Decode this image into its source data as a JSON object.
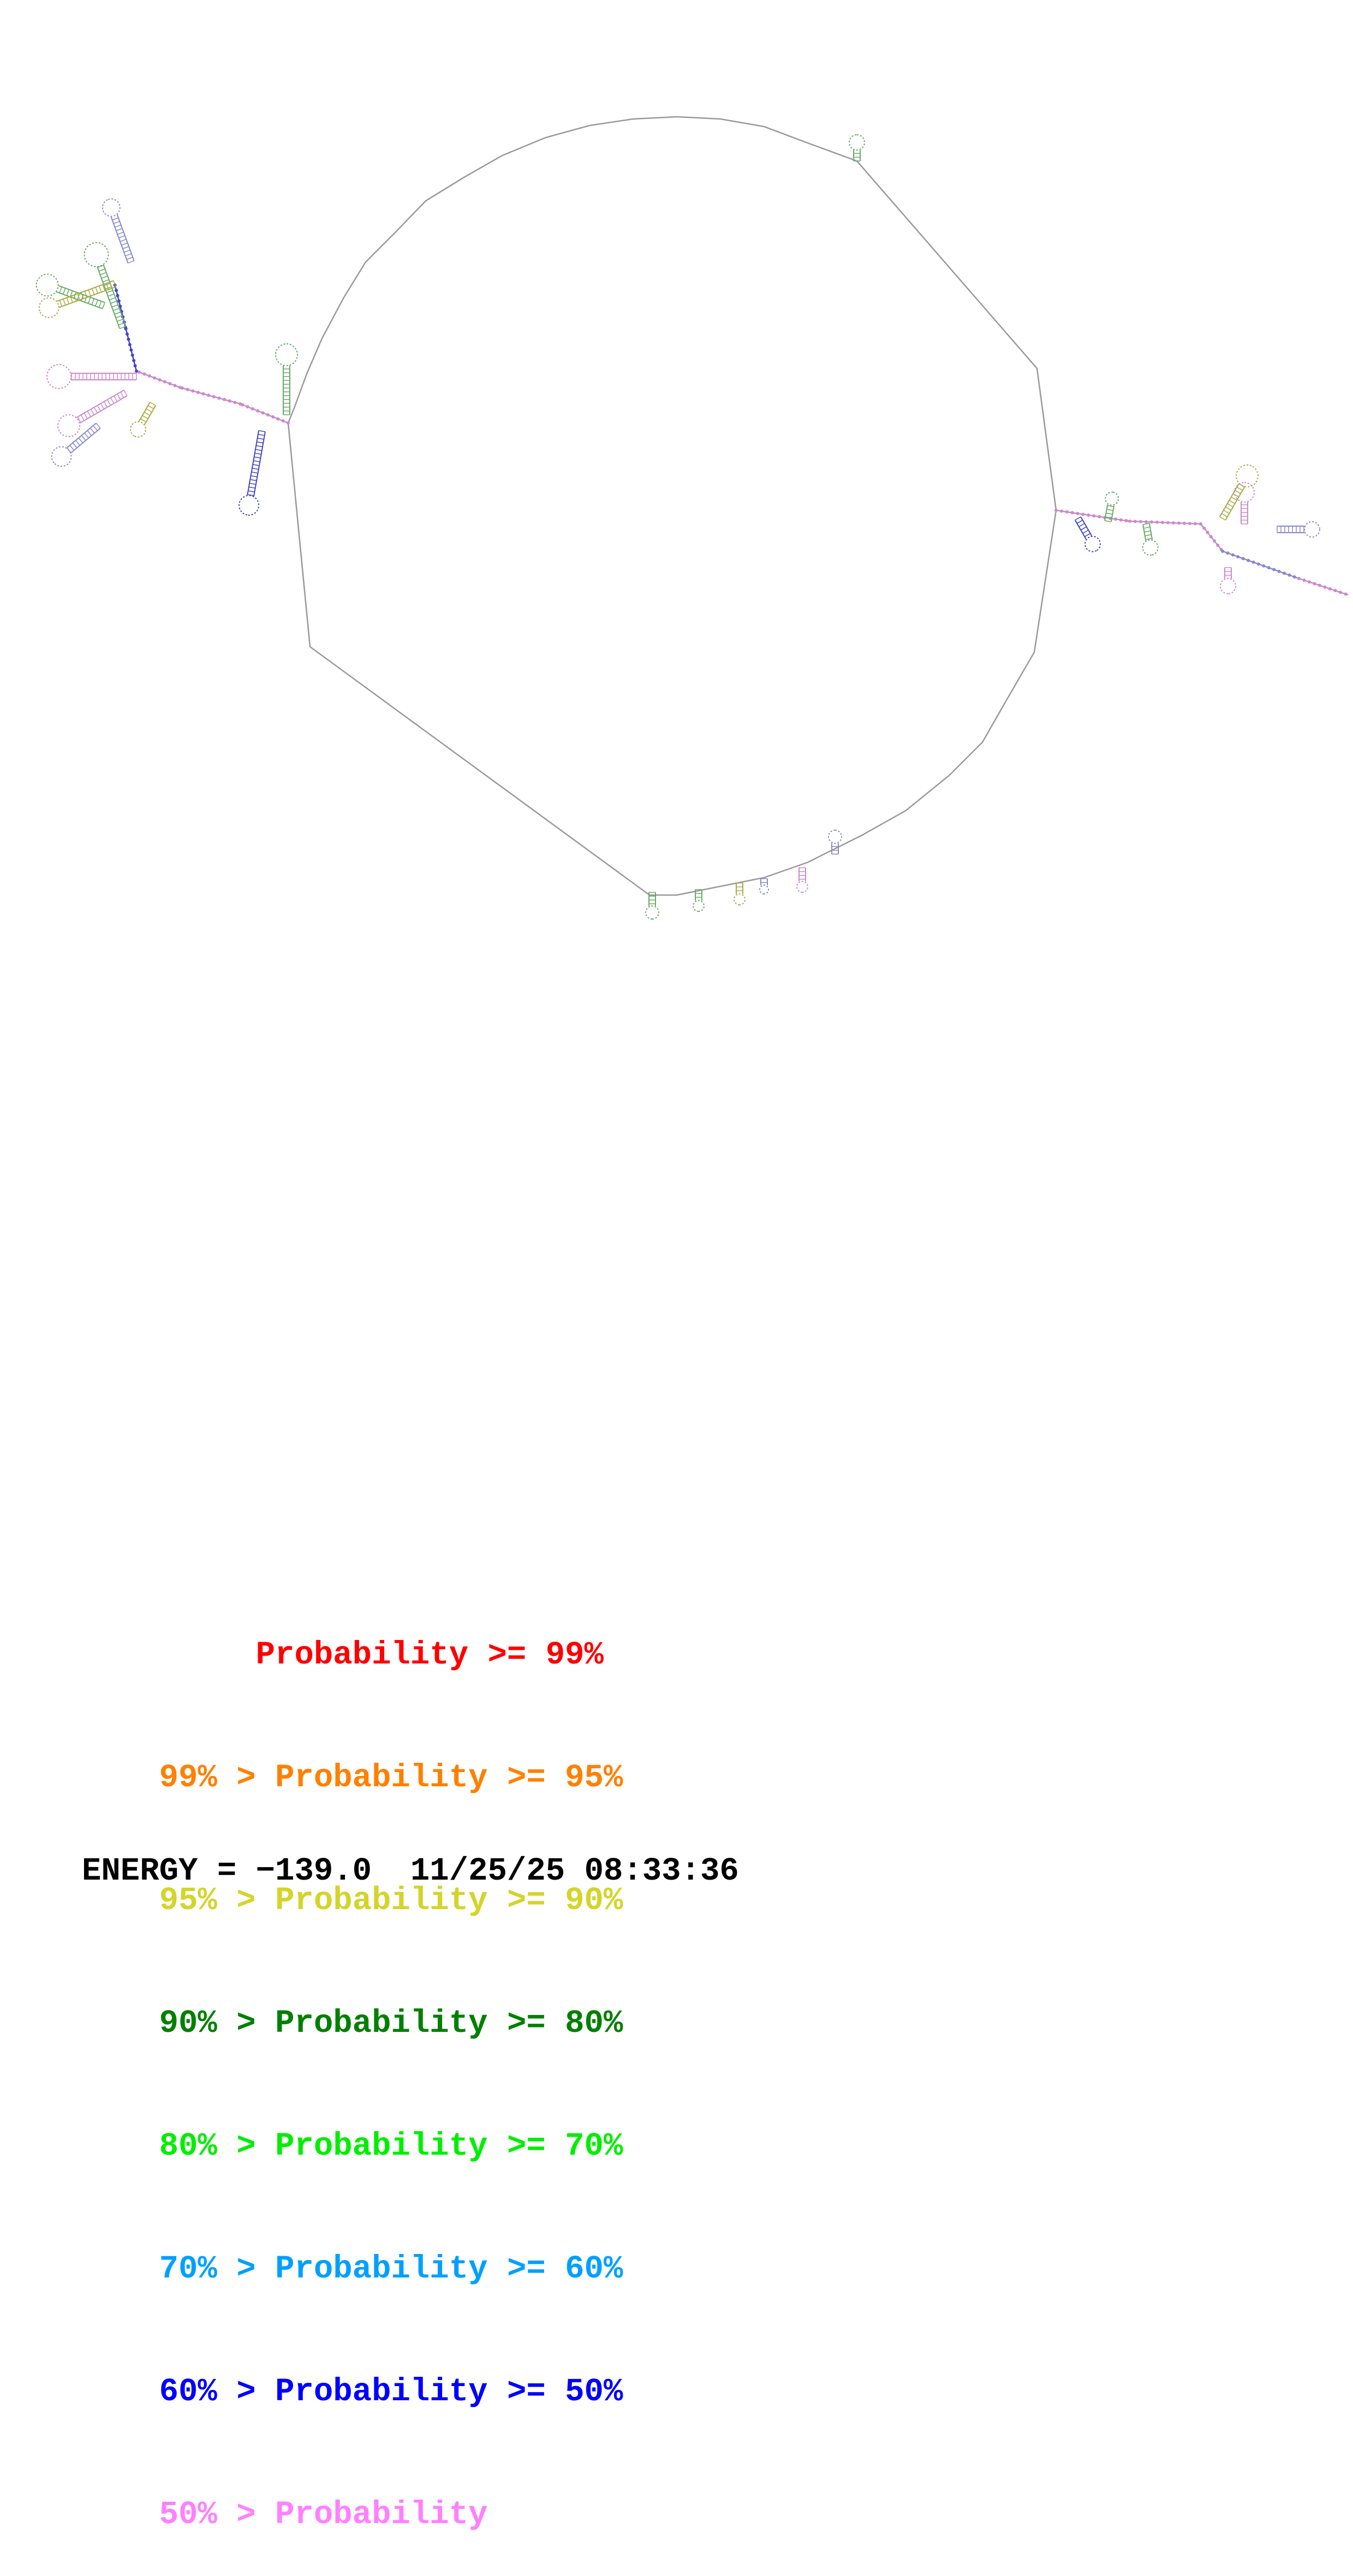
{
  "legend": {
    "rows": [
      {
        "lower": "",
        "sep": "",
        "label": "Probability",
        "cmp": ">=",
        "upper": "99%",
        "color": "#ff0000"
      },
      {
        "lower": "99%",
        "sep": ">",
        "label": "Probability",
        "cmp": ">=",
        "upper": "95%",
        "color": "#ff8000"
      },
      {
        "lower": "95%",
        "sep": ">",
        "label": "Probability",
        "cmp": ">=",
        "upper": "90%",
        "color": "#d4d42a"
      },
      {
        "lower": "90%",
        "sep": ">",
        "label": "Probability",
        "cmp": ">=",
        "upper": "80%",
        "color": "#008000"
      },
      {
        "lower": "80%",
        "sep": ">",
        "label": "Probability",
        "cmp": ">=",
        "upper": "70%",
        "color": "#00ee00"
      },
      {
        "lower": "70%",
        "sep": ">",
        "label": "Probability",
        "cmp": ">=",
        "upper": "60%",
        "color": "#00a0ff"
      },
      {
        "lower": "60%",
        "sep": ">",
        "label": "Probability",
        "cmp": ">=",
        "upper": "50%",
        "color": "#0000ff"
      },
      {
        "lower": "50%",
        "sep": ">",
        "label": "Probability",
        "cmp": "",
        "upper": "",
        "color": "#ff80ff"
      }
    ]
  },
  "footer": {
    "energy_label": "ENERGY =",
    "energy_value": "−139.0",
    "date": "11/25/25",
    "time": "08:33:36"
  },
  "structure": {
    "line_color": "#999999",
    "base_colors": [
      "#cc88cc",
      "#8888cc",
      "#66aa66",
      "#aaaa44",
      "#4444cc"
    ]
  }
}
